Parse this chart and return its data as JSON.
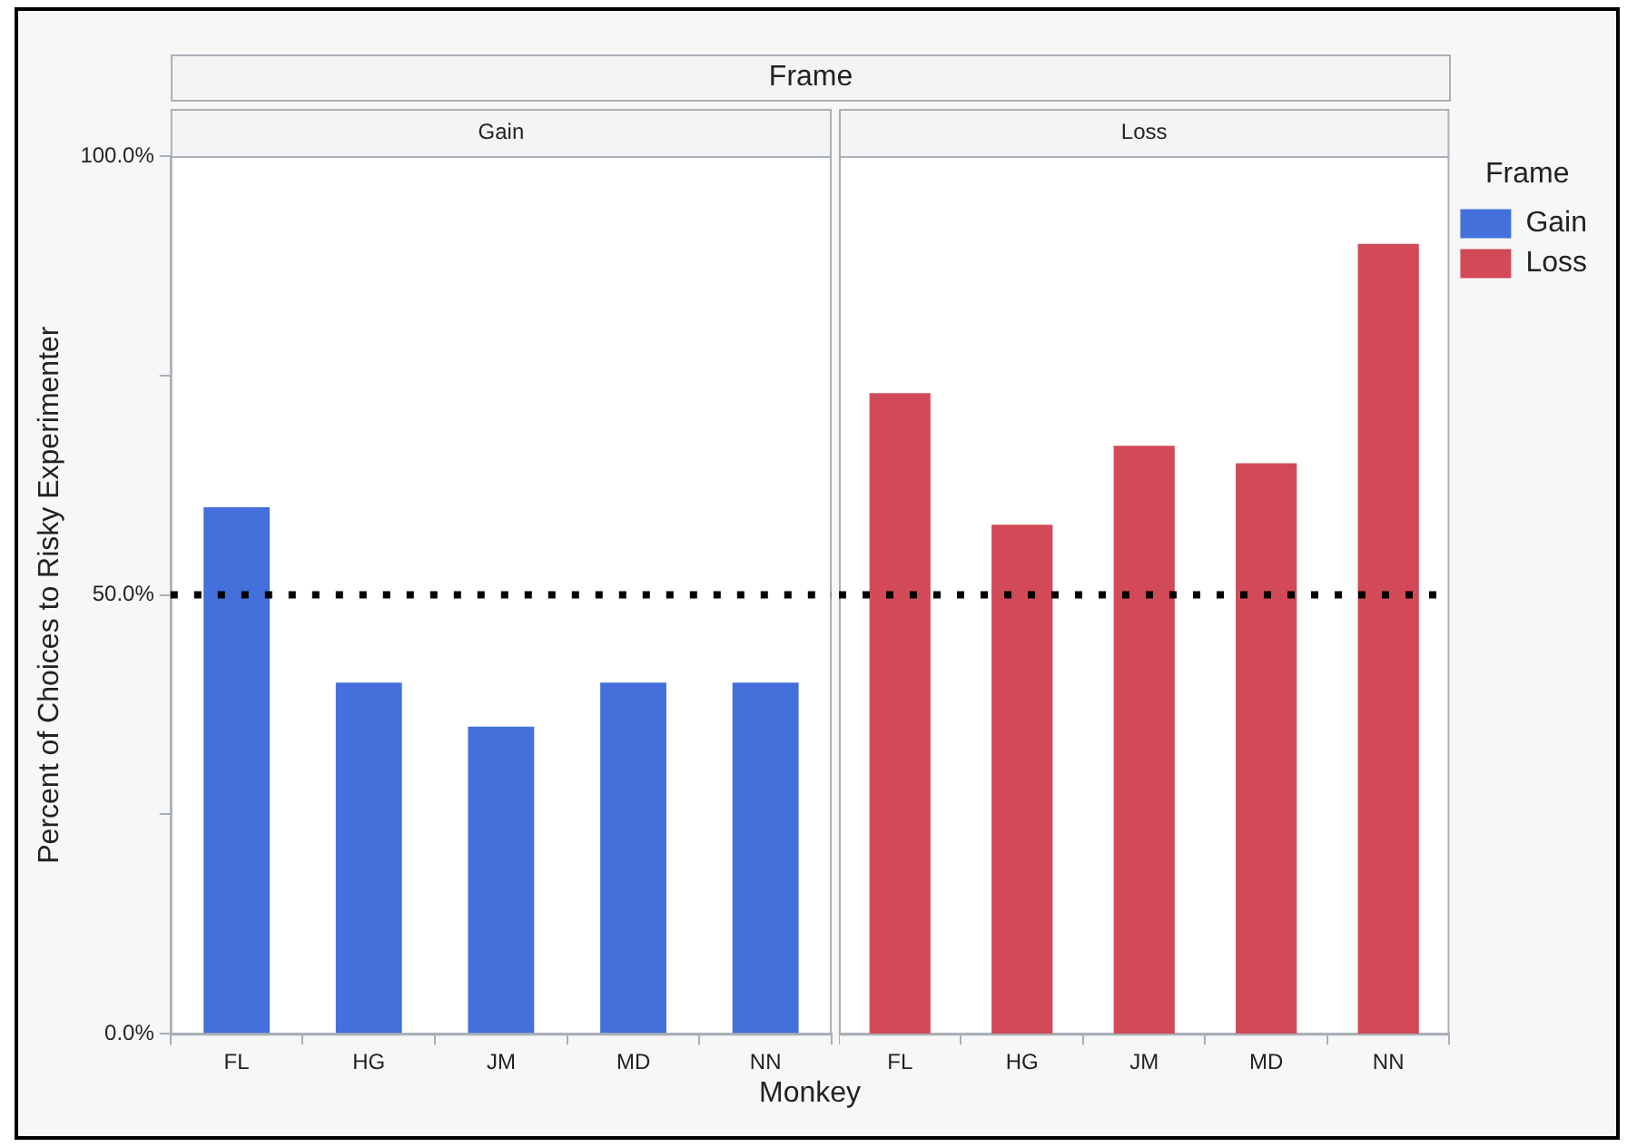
{
  "chart_data": [
    {
      "type": "bar",
      "title": "Gain",
      "xlabel": "Monkey",
      "ylabel": "Percent of Choices to Risky Experimenter",
      "annotations": [
        "Frame"
      ],
      "categories": [
        "FL",
        "HG",
        "JM",
        "MD",
        "NN"
      ],
      "series": [
        {
          "color": "#4470dc",
          "values": [
            60,
            40,
            35,
            40,
            40
          ]
        }
      ],
      "ylim": [
        0,
        100
      ],
      "yticks": [
        {
          "value": 0,
          "label": "0.0%"
        },
        {
          "value": 25,
          "label": null
        },
        {
          "value": 50,
          "label": "50.0%"
        },
        {
          "value": 75,
          "label": null
        },
        {
          "value": 100,
          "label": "100.0%"
        }
      ],
      "ref_lines": [
        {
          "axis": "y",
          "value": 50,
          "label": null,
          "color": "#000000",
          "line_style": "dotted"
        }
      ],
      "grid": false
    },
    {
      "type": "bar",
      "title": "Loss",
      "legend_title": "Frame",
      "categories": [
        "FL",
        "HG",
        "JM",
        "MD",
        "NN"
      ],
      "series": [
        {
          "name": "Gain",
          "color": "#4470dc",
          "values": [
            null,
            null,
            null,
            null,
            null
          ]
        },
        {
          "name": "Loss",
          "color": "#d24a58",
          "values": [
            73,
            58,
            67,
            65,
            90
          ]
        }
      ],
      "ylim": [
        0,
        100
      ],
      "ref_lines": [
        {
          "axis": "y",
          "value": 50,
          "label": null,
          "color": "#000000",
          "line_style": "dotted"
        }
      ],
      "grid": false,
      "legend": "top right",
      "tick_labels": "x"
    }
  ]
}
